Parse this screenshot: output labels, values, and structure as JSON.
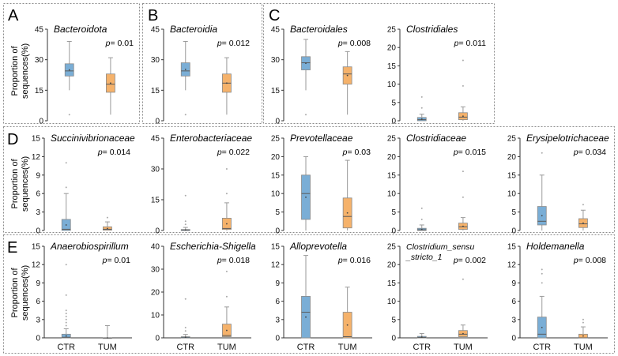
{
  "colors": {
    "ctr": "#7aaed6",
    "tum": "#f5b26b",
    "frame": "#8a8a8a",
    "axis": "#333333",
    "median": "#5a5a5a"
  },
  "y_axis_label": [
    "Proportion of",
    "sequences(%)"
  ],
  "chart_data": [
    {
      "panel": "A",
      "type": "box",
      "title": "Bacteroidota",
      "p": "p= 0.01",
      "ylim": [
        0,
        45
      ],
      "yticks": [
        0,
        15,
        30,
        45
      ],
      "series": [
        {
          "name": "CTR",
          "min": 15,
          "q1": 22,
          "median": 24.5,
          "q3": 28,
          "max": 39,
          "outliers": [
            3
          ]
        },
        {
          "name": "TUM",
          "min": 3,
          "q1": 14,
          "median": 18,
          "q3": 23,
          "max": 31,
          "outliers": []
        }
      ]
    },
    {
      "panel": "B",
      "type": "box",
      "title": "Bacteroidia",
      "p": "p= 0.012",
      "ylim": [
        0,
        45
      ],
      "yticks": [
        0,
        15,
        30,
        45
      ],
      "series": [
        {
          "name": "CTR",
          "min": 15,
          "q1": 22,
          "median": 24.5,
          "q3": 28.5,
          "max": 39,
          "outliers": [
            3
          ]
        },
        {
          "name": "TUM",
          "min": 3,
          "q1": 14,
          "median": 18.5,
          "q3": 23,
          "max": 31,
          "outliers": []
        }
      ]
    },
    {
      "panel": "C",
      "type": "box",
      "title": "Bacteroidales",
      "p": "p= 0.008",
      "ylim": [
        0,
        45
      ],
      "yticks": [
        0,
        15,
        30,
        45
      ],
      "series": [
        {
          "name": "CTR",
          "min": 15,
          "q1": 25,
          "median": 28.5,
          "q3": 31.5,
          "max": 40,
          "outliers": [
            3
          ]
        },
        {
          "name": "TUM",
          "min": 3,
          "q1": 18,
          "median": 23,
          "q3": 26.5,
          "max": 34,
          "outliers": []
        }
      ]
    },
    {
      "type": "box",
      "title": "Clostridiales",
      "p": "p= 0.011",
      "ylim": [
        0,
        25
      ],
      "yticks": [
        0,
        5,
        10,
        15,
        20,
        25
      ],
      "series": [
        {
          "name": "CTR",
          "min": 0,
          "q1": 0,
          "median": 0.3,
          "q3": 0.9,
          "max": 1.8,
          "outliers": [
            3.5,
            6.5
          ]
        },
        {
          "name": "TUM",
          "min": 0,
          "q1": 0.3,
          "median": 1,
          "q3": 2.2,
          "max": 3.8,
          "outliers": [
            9.5,
            16.5
          ]
        }
      ]
    },
    {
      "panel": "D",
      "type": "box",
      "title": "Succinivibrionaceae",
      "p": "p= 0.014",
      "ylim": [
        0,
        15
      ],
      "yticks": [
        0,
        3,
        6,
        9,
        12,
        15
      ],
      "series": [
        {
          "name": "CTR",
          "min": 0,
          "q1": 0,
          "median": 0.2,
          "q3": 1.8,
          "max": 6,
          "outliers": [
            7,
            11
          ]
        },
        {
          "name": "TUM",
          "min": 0,
          "q1": 0.05,
          "median": 0.2,
          "q3": 0.6,
          "max": 1.4,
          "outliers": [
            2.1
          ]
        }
      ]
    },
    {
      "type": "box",
      "title": "Enterobacteriaceae",
      "p": "p= 0.022",
      "ylim": [
        0,
        45
      ],
      "yticks": [
        0,
        15,
        30,
        45
      ],
      "series": [
        {
          "name": "CTR",
          "min": 0,
          "q1": 0,
          "median": 0.1,
          "q3": 0.5,
          "max": 1.5,
          "outliers": [
            3,
            4.5,
            17
          ]
        },
        {
          "name": "TUM",
          "min": 0,
          "q1": 0.5,
          "median": 1,
          "q3": 6,
          "max": 13.5,
          "outliers": [
            18,
            30
          ]
        }
      ]
    },
    {
      "type": "box",
      "title": "Prevotellaceae",
      "p": "p= 0.03",
      "ylim": [
        0,
        25
      ],
      "yticks": [
        0,
        5,
        10,
        15,
        20,
        25
      ],
      "series": [
        {
          "name": "CTR",
          "min": 0,
          "q1": 3,
          "median": 10,
          "q3": 15,
          "max": 20,
          "outliers": []
        },
        {
          "name": "TUM",
          "min": 0,
          "q1": 0.7,
          "median": 3.8,
          "q3": 8.8,
          "max": 19,
          "outliers": []
        }
      ]
    },
    {
      "type": "box",
      "title": "Clostridiaceae",
      "p": "p= 0.015",
      "ylim": [
        0,
        25
      ],
      "yticks": [
        0,
        5,
        10,
        15,
        20,
        25
      ],
      "series": [
        {
          "name": "CTR",
          "min": 0,
          "q1": 0,
          "median": 0.2,
          "q3": 0.6,
          "max": 1.5,
          "outliers": [
            3,
            6
          ]
        },
        {
          "name": "TUM",
          "min": 0,
          "q1": 0.3,
          "median": 1,
          "q3": 2,
          "max": 3.5,
          "outliers": [
            9,
            16
          ]
        }
      ]
    },
    {
      "type": "box",
      "title": "Erysipelotrichaceae",
      "p": "p= 0.034",
      "ylim": [
        0,
        25
      ],
      "yticks": [
        0,
        5,
        10,
        15,
        20,
        25
      ],
      "series": [
        {
          "name": "CTR",
          "min": 0,
          "q1": 1.5,
          "median": 2.5,
          "q3": 6.5,
          "max": 15,
          "outliers": [
            21
          ]
        },
        {
          "name": "TUM",
          "min": 0,
          "q1": 0.8,
          "median": 1.8,
          "q3": 3.2,
          "max": 5.5,
          "outliers": [
            7
          ]
        }
      ]
    },
    {
      "panel": "E",
      "type": "box",
      "title": "Anaerobiospirillum",
      "p": "p= 0.01",
      "ylim": [
        0,
        15
      ],
      "yticks": [
        0,
        3,
        6,
        9,
        12,
        15
      ],
      "series": [
        {
          "name": "CTR",
          "min": 0,
          "q1": 0,
          "median": 0.1,
          "q3": 0.6,
          "max": 1.5,
          "outliers": [
            2,
            2.5,
            3,
            3.5,
            4,
            4.5,
            7,
            12
          ]
        },
        {
          "name": "TUM",
          "min": 0,
          "q1": 0,
          "median": 0,
          "q3": 0,
          "max": 2,
          "outliers": []
        }
      ]
    },
    {
      "type": "box",
      "title": "Escherichia-Shigella",
      "p": "p= 0.018",
      "ylim": [
        0,
        40
      ],
      "yticks": [
        0,
        10,
        20,
        30,
        40
      ],
      "series": [
        {
          "name": "CTR",
          "min": 0,
          "q1": 0,
          "median": 0.1,
          "q3": 0.5,
          "max": 1.5,
          "outliers": [
            3,
            4.5,
            17
          ]
        },
        {
          "name": "TUM",
          "min": 0,
          "q1": 0.5,
          "median": 1,
          "q3": 6,
          "max": 13.5,
          "outliers": [
            18,
            29
          ]
        }
      ]
    },
    {
      "type": "box",
      "title": "Alloprevotella",
      "p": "p= 0.016",
      "ylim": [
        0,
        15
      ],
      "yticks": [
        0,
        3,
        6,
        9,
        12,
        15
      ],
      "series": [
        {
          "name": "CTR",
          "min": 0,
          "q1": 0,
          "median": 4.2,
          "q3": 6.8,
          "max": 13.5,
          "outliers": []
        },
        {
          "name": "TUM",
          "min": 0,
          "q1": 0,
          "median": 0.2,
          "q3": 4.2,
          "max": 8.3,
          "outliers": []
        }
      ]
    },
    {
      "type": "box",
      "title": "Clostridium_sensu\n_stricto_1",
      "p": "p= 0.002",
      "ylim": [
        0,
        25
      ],
      "yticks": [
        0,
        5,
        10,
        15,
        20,
        25
      ],
      "series": [
        {
          "name": "CTR",
          "min": 0,
          "q1": 0,
          "median": 0.1,
          "q3": 0.4,
          "max": 1.2,
          "outliers": []
        },
        {
          "name": "TUM",
          "min": 0,
          "q1": 0.3,
          "median": 1,
          "q3": 2,
          "max": 3.5,
          "outliers": [
            16
          ]
        }
      ]
    },
    {
      "type": "box",
      "title": "Holdemanella",
      "p": "p= 0.008",
      "ylim": [
        0,
        15
      ],
      "yticks": [
        0,
        3,
        6,
        9,
        12,
        15
      ],
      "series": [
        {
          "name": "CTR",
          "min": 0,
          "q1": 0,
          "median": 0.6,
          "q3": 3.4,
          "max": 6.8,
          "outliers": [
            9,
            10.5,
            11.2
          ]
        },
        {
          "name": "TUM",
          "min": 0,
          "q1": 0,
          "median": 0,
          "q3": 0.6,
          "max": 1.8,
          "outliers": [
            2.5,
            3
          ]
        }
      ]
    }
  ]
}
